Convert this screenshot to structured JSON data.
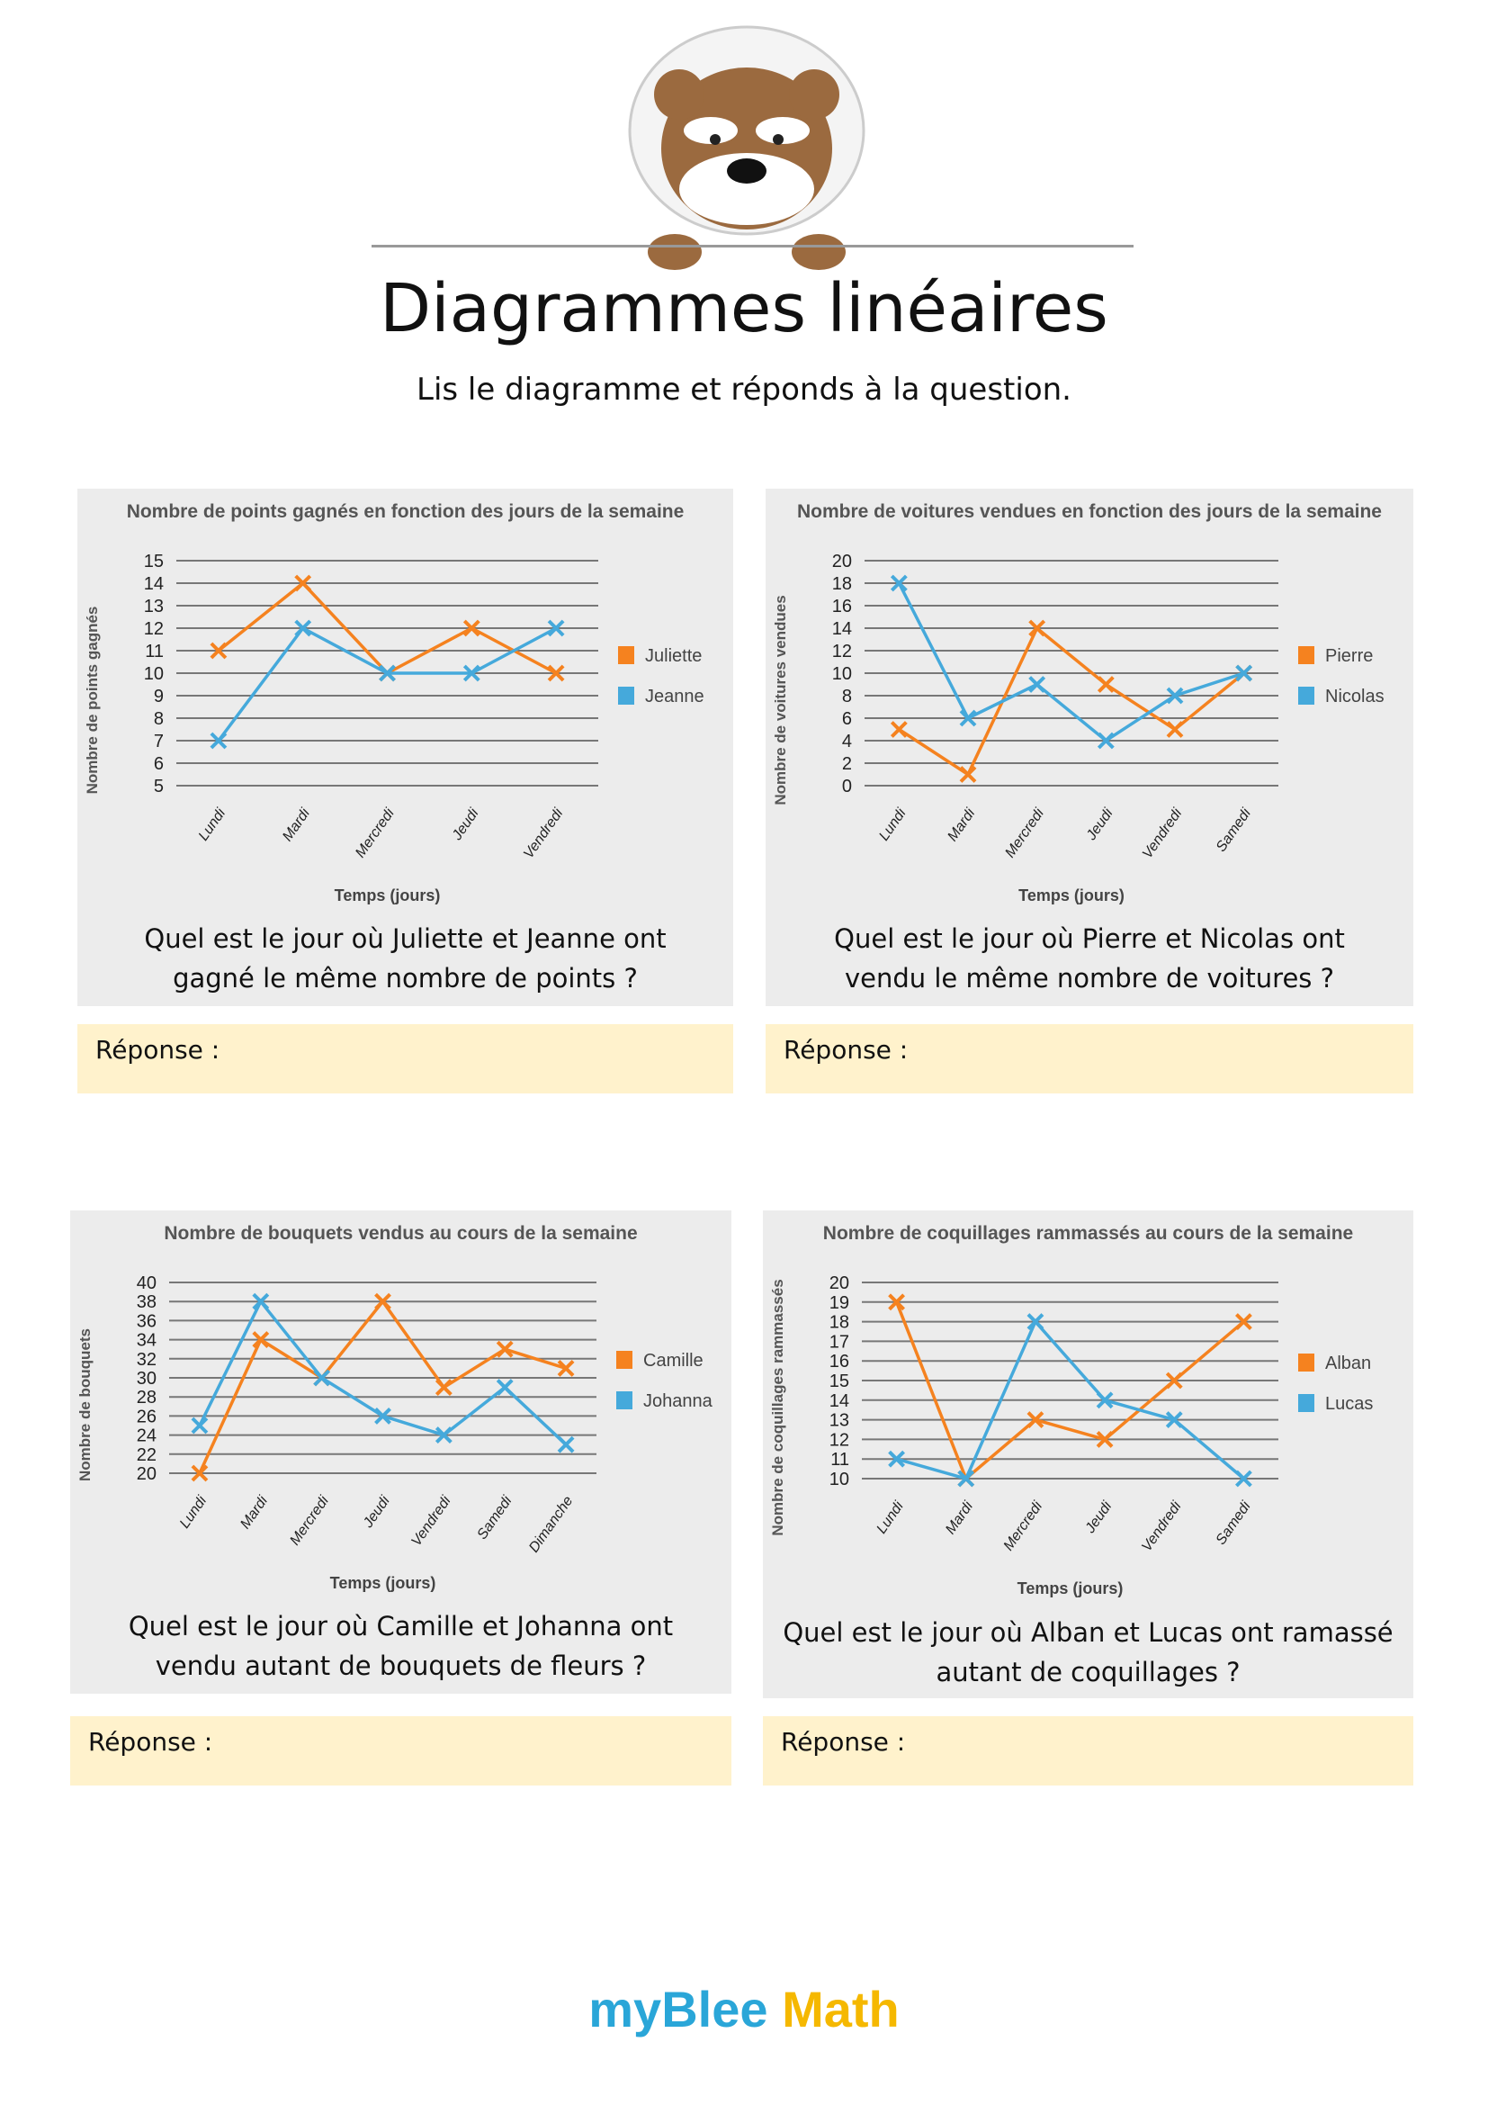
{
  "header": {
    "title": "Diagrammes linéaires",
    "subtitle": "Lis le diagramme et réponds à la question."
  },
  "colors": {
    "orange": "#f5821f",
    "blue": "#45a9db",
    "panel": "#ececec",
    "answer": "#fff2cc"
  },
  "answer_label": "Réponse :",
  "logo": {
    "part1": "myBlee",
    "part2": "Math"
  },
  "questions": [
    "Quel est le jour où Juliette et Jeanne ont gagné le même nombre de points ?",
    "Quel est le jour où Pierre et Nicolas ont vendu le même nombre de voitures ?",
    "Quel est le jour où Camille et Johanna ont vendu autant de bouquets de fleurs ?",
    "Quel est le jour où Alban et Lucas ont ramassé autant de coquillages ?"
  ],
  "chart_data": [
    {
      "type": "line",
      "title": "Nombre de points gagnés en fonction des jours de la semaine",
      "xlabel": "Temps (jours)",
      "ylabel": "Nombre de points gagnés",
      "ylim": [
        5,
        15
      ],
      "ystep": 1,
      "categories": [
        "Lundi",
        "Mardi",
        "Mercredi",
        "Jeudi",
        "Vendredi"
      ],
      "series": [
        {
          "name": "Juliette",
          "color": "#f5821f",
          "values": [
            11,
            14,
            10,
            12,
            10
          ]
        },
        {
          "name": "Jeanne",
          "color": "#45a9db",
          "values": [
            7,
            12,
            10,
            10,
            12
          ]
        }
      ],
      "legend": "right",
      "grid": true
    },
    {
      "type": "line",
      "title": "Nombre de voitures vendues en fonction des jours de la semaine",
      "xlabel": "Temps (jours)",
      "ylabel": "Nombre de voitures vendues",
      "ylim": [
        0,
        20
      ],
      "ystep": 2,
      "categories": [
        "Lundi",
        "Mardi",
        "Mercredi",
        "Jeudi",
        "Vendredi",
        "Samedi"
      ],
      "series": [
        {
          "name": "Pierre",
          "color": "#f5821f",
          "values": [
            5,
            1,
            14,
            9,
            5,
            10
          ]
        },
        {
          "name": "Nicolas",
          "color": "#45a9db",
          "values": [
            18,
            6,
            9,
            4,
            8,
            10
          ]
        }
      ],
      "legend": "right",
      "grid": true
    },
    {
      "type": "line",
      "title": "Nombre de bouquets vendus au cours de la semaine",
      "xlabel": "Temps (jours)",
      "ylabel": "Nombre de bouquets",
      "ylim": [
        20,
        40
      ],
      "ystep": 2,
      "categories": [
        "Lundi",
        "Mardi",
        "Mercredi",
        "Jeudi",
        "Vendredi",
        "Samedi",
        "Dimanche"
      ],
      "series": [
        {
          "name": "Camille",
          "color": "#f5821f",
          "values": [
            20,
            34,
            30,
            38,
            29,
            33,
            31
          ]
        },
        {
          "name": "Johanna",
          "color": "#45a9db",
          "values": [
            25,
            38,
            30,
            26,
            24,
            29,
            23
          ]
        }
      ],
      "legend": "right",
      "grid": true
    },
    {
      "type": "line",
      "title": "Nombre de coquillages rammassés au cours de la semaine",
      "xlabel": "Temps (jours)",
      "ylabel": "Nombre de coquillages rammassés",
      "ylim": [
        10,
        20
      ],
      "ystep": 1,
      "categories": [
        "Lundi",
        "Mardi",
        "Mercredi",
        "Jeudi",
        "Vendredi",
        "Samedi"
      ],
      "series": [
        {
          "name": "Alban",
          "color": "#f5821f",
          "values": [
            19,
            10,
            13,
            12,
            15,
            18
          ]
        },
        {
          "name": "Lucas",
          "color": "#45a9db",
          "values": [
            11,
            10,
            18,
            14,
            13,
            10
          ]
        }
      ],
      "legend": "right",
      "grid": true
    }
  ]
}
